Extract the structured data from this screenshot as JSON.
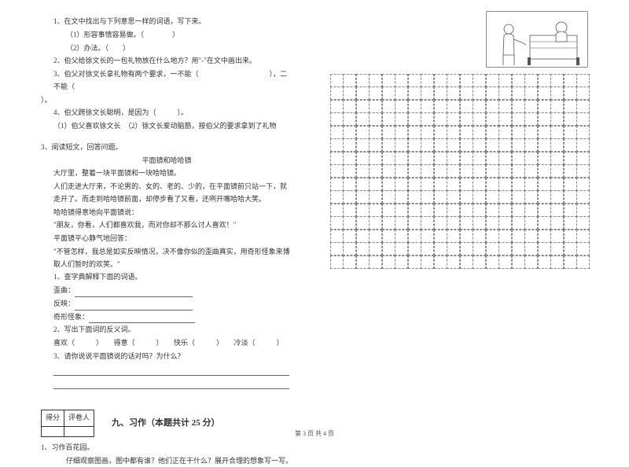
{
  "left": {
    "q1": "1、在文中找出与下列意思一样的词语，写下来。",
    "q1_1": "（1）形容事情容易做。（　　　　）",
    "q1_2": "（2）办法。（　　）",
    "q2": "2、伯父给徐文长的一包礼物放在什么地方？用\"-\"在文中画出来。",
    "q3a": "3、伯父对徐文长拿礼物有两个要求，一不能（　　　　　　　　　　），二不能（",
    "q3b": "）。",
    "q4": "4、伯父跨徐文长聪明，是因为（　　　）。",
    "q4_opt": "（1）伯父喜欢徐文长　（2）徐文长爱动脑筋，按伯父的要求拿到了礼物",
    "reading_header": "3、阅读短文，回答问题。",
    "title": "平面镜和哈哈镜",
    "p1": "大厅里，整着一块平面镜和一块哈哈镜。",
    "p2": "人们走进大厅来，不论男的、女的、老的、少的，在平面镜前只站一下，就走开了。而走到哈哈镜前面，却停步看了又看，还咧开嘴哈哈大笑。",
    "p3": "哈哈镜得意地向平面镜说：",
    "p4": "\"朋友，你看，人们都喜欢我，而对你却不那么讨人喜欢！\"",
    "p5": "平面镜平心静气地回答：",
    "p6": "\"不管怎样，我总是如实反映情况，决不像你似的歪曲真实，用奇形怪象来博取人们暂时的欢笑。\"",
    "sq1": "1、查字典解释下面的词语。",
    "sq1_a_label": "歪曲：",
    "sq1_b_label": "反映：",
    "sq1_c_label": "奇形怪象：",
    "sq2": "2、写出下面词的反义词。",
    "sq2_words": "喜欢（　　　）　　得意（　　　）　　快乐（　　　）　　冷淡（　　　）",
    "sq3": "3、请你说说平面镜说的话对吗？为什么？",
    "score_col1": "得分",
    "score_col2": "评卷人",
    "section9": "九、习作（本题共计 25 分）",
    "composition": "1、习作百花园。",
    "composition_prompt": "仔细观察图画，图中都有谁？他们正在干什么？展开合理的想象写一写。"
  },
  "grid": {
    "rows": 15,
    "cols": 20,
    "border_color": "#888888"
  },
  "footer": "第 3 页 共 4 页",
  "colors": {
    "text": "#333333",
    "line": "#666666"
  }
}
